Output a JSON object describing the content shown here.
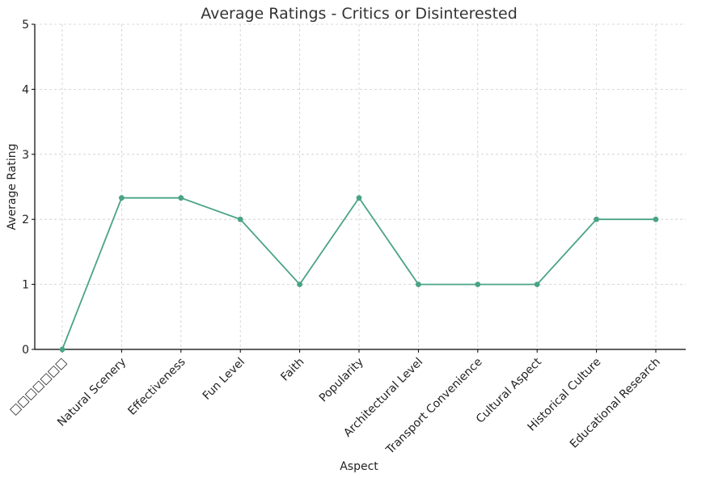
{
  "chart_data": {
    "type": "line",
    "title": "Average Ratings - Critics or Disinterested",
    "xlabel": "Aspect",
    "ylabel": "Average Rating",
    "categories": [
      "□□□□□□□",
      "Natural Scenery",
      "Effectiveness",
      "Fun Level",
      "Faith",
      "Popularity",
      "Architectural Level",
      "Transport Convenience",
      "Cultural Aspect",
      "Historical Culture",
      "Educational Research"
    ],
    "series": [
      {
        "values": [
          0,
          2.33,
          2.33,
          2.0,
          1.0,
          2.33,
          1.0,
          1.0,
          1.0,
          2.0,
          2.0
        ]
      }
    ],
    "ylim": [
      0,
      5
    ],
    "yticks": [
      0,
      1,
      2,
      3,
      4,
      5
    ],
    "grid": true,
    "line_color": "#4aa387"
  }
}
